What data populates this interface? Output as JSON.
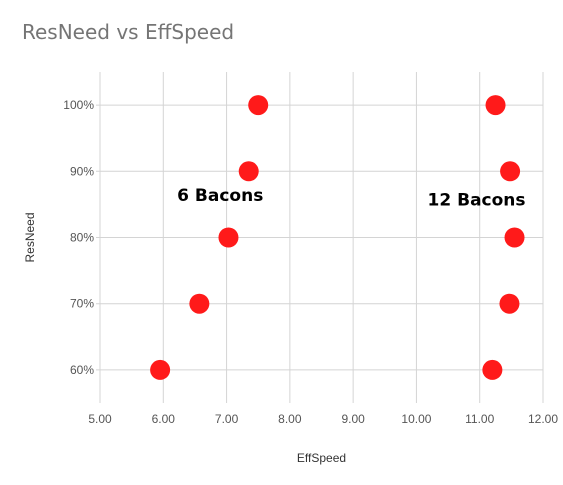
{
  "chart_data": {
    "type": "scatter",
    "title": "ResNeed vs EffSpeed",
    "xlabel": "EffSpeed",
    "ylabel": "ResNeed",
    "xlim": [
      5.0,
      12.0
    ],
    "ylim": [
      0.55,
      1.05
    ],
    "x_ticks": [
      "5.00",
      "6.00",
      "7.00",
      "8.00",
      "9.00",
      "10.00",
      "11.00",
      "12.00"
    ],
    "y_ticks": [
      "60%",
      "70%",
      "80%",
      "90%",
      "100%"
    ],
    "grid": true,
    "marker_color": "#ff1a1a",
    "series": [
      {
        "points": [
          {
            "x": 5.95,
            "y": 0.6
          },
          {
            "x": 6.57,
            "y": 0.7
          },
          {
            "x": 7.03,
            "y": 0.8
          },
          {
            "x": 7.35,
            "y": 0.9
          },
          {
            "x": 7.5,
            "y": 1.0
          },
          {
            "x": 11.2,
            "y": 0.6
          },
          {
            "x": 11.47,
            "y": 0.7
          },
          {
            "x": 11.55,
            "y": 0.8
          },
          {
            "x": 11.48,
            "y": 0.9
          },
          {
            "x": 11.25,
            "y": 1.0
          }
        ]
      }
    ],
    "annotations": [
      {
        "text": "6 Bacons",
        "x": 6.9,
        "y": 0.855
      },
      {
        "text": "12 Bacons",
        "x": 10.95,
        "y": 0.848
      }
    ]
  }
}
